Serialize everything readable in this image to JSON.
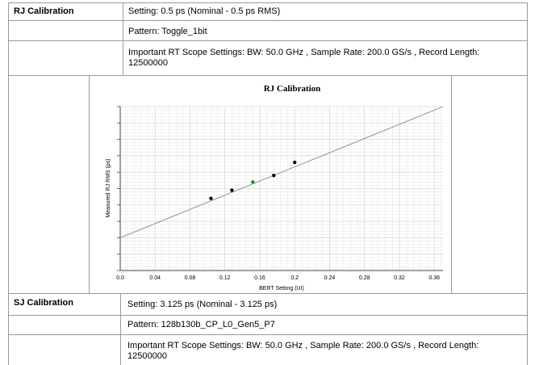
{
  "rj": {
    "label": "RJ Calibration",
    "setting": "Setting: 0.5 ps (Nominal - 0.5 ps RMS)",
    "pattern": "Pattern: Toggle_1bit",
    "scope_line1": "Important RT Scope Settings: BW: 50.0 GHz , Sample Rate: 200.0 GS/s , Record Length:",
    "scope_line2": "12500000"
  },
  "sj": {
    "label": "SJ Calibration",
    "setting": "Setting: 3.125 ps (Nominal - 3.125 ps)",
    "pattern": "Pattern: 128b130b_CP_L0_Gen5_P7",
    "scope_line1": "Important RT Scope Settings: BW: 50.0 GHz , Sample Rate: 200.0 GS/s , Record Length:",
    "scope_line2": "12500000"
  },
  "chart_data": {
    "type": "scatter",
    "title": "RJ Calibration",
    "xlabel": "BERT Setting (UI)",
    "ylabel": "Measured RJ RMS (ps)",
    "xlim": [
      0,
      0.37
    ],
    "ylim": [
      0,
      1
    ],
    "x_ticks": [
      "0.0",
      "0.04",
      "0.08",
      "0.12",
      "0.16",
      "0.2",
      "0.24",
      "0.28",
      "0.32",
      "0.36"
    ],
    "grid": true,
    "series": [
      {
        "points": [
          [
            0.104,
            0.44
          ],
          [
            0.128,
            0.49
          ],
          [
            0.176,
            0.58
          ],
          [
            0.2,
            0.66
          ]
        ],
        "color": "#000000"
      },
      {
        "points": [
          [
            0.152,
            0.54
          ]
        ],
        "color": "#1a8a1a"
      }
    ],
    "fit_line": {
      "x": [
        0,
        0.37
      ],
      "y": [
        0.2,
        1.0
      ],
      "color": "#888888"
    }
  }
}
